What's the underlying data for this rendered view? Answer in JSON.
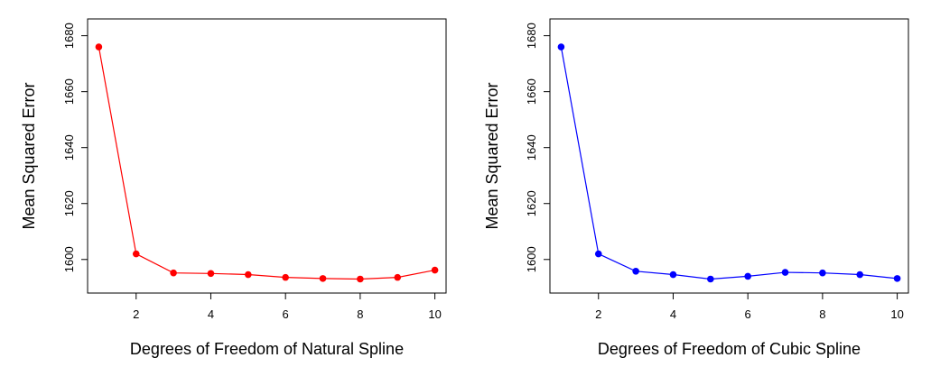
{
  "chart_data": [
    {
      "type": "line",
      "title": "",
      "xlabel": "Degrees of Freedom of Natural Spline",
      "ylabel": "Mean Squared Error",
      "x": [
        1,
        2,
        3,
        4,
        5,
        6,
        7,
        8,
        9,
        10
      ],
      "series": [
        {
          "name": "Natural Spline",
          "color": "#ff0000",
          "values": [
            1676,
            1602,
            1595.2,
            1595,
            1594.6,
            1593.6,
            1593.2,
            1593,
            1593.6,
            1596.2
          ]
        }
      ],
      "xlim": [
        0.7,
        10.3
      ],
      "ylim": [
        1588,
        1686
      ],
      "xticks": [
        2,
        4,
        6,
        8,
        10
      ],
      "yticks": [
        1600,
        1620,
        1640,
        1660,
        1680
      ],
      "grid": false
    },
    {
      "type": "line",
      "title": "",
      "xlabel": "Degrees of Freedom of Cubic Spline",
      "ylabel": "Mean Squared Error",
      "x": [
        1,
        2,
        3,
        4,
        5,
        6,
        7,
        8,
        9,
        10
      ],
      "series": [
        {
          "name": "Cubic Spline",
          "color": "#0000ff",
          "values": [
            1676,
            1602,
            1595.8,
            1594.6,
            1593,
            1594,
            1595.4,
            1595.2,
            1594.6,
            1593.2
          ]
        }
      ],
      "xlim": [
        0.7,
        10.3
      ],
      "ylim": [
        1588,
        1686
      ],
      "xticks": [
        2,
        4,
        6,
        8,
        10
      ],
      "yticks": [
        1600,
        1620,
        1640,
        1660,
        1680
      ],
      "grid": false
    }
  ]
}
